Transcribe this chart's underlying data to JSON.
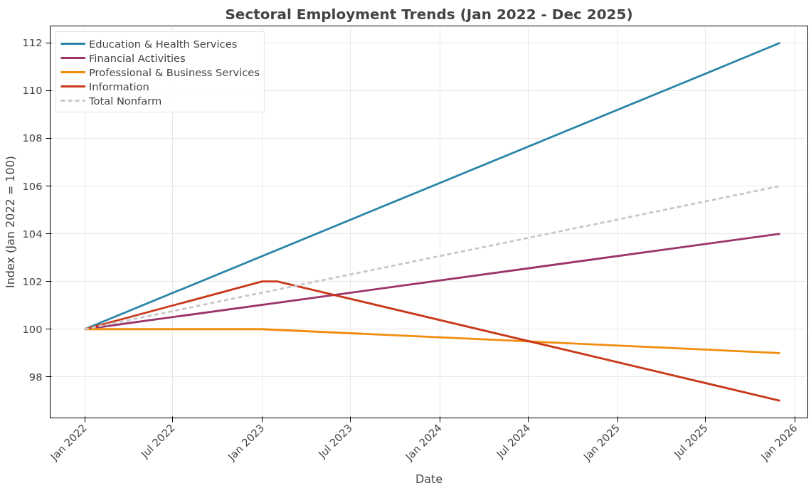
{
  "chart_data": {
    "type": "line",
    "title": "Sectoral Employment Trends (Jan 2022 - Dec 2025)",
    "xlabel": "Date",
    "ylabel": "Index (Jan 2022 = 100)",
    "xlim": [
      "2021-10-22",
      "2026-01-27"
    ],
    "ylim": [
      96.28,
      112.71
    ],
    "xticks": [
      {
        "value": "2022-01",
        "label": "Jan 2022"
      },
      {
        "value": "2022-07",
        "label": "Jul 2022"
      },
      {
        "value": "2023-01",
        "label": "Jan 2023"
      },
      {
        "value": "2023-07",
        "label": "Jul 2023"
      },
      {
        "value": "2024-01",
        "label": "Jan 2024"
      },
      {
        "value": "2024-07",
        "label": "Jul 2024"
      },
      {
        "value": "2025-01",
        "label": "Jan 2025"
      },
      {
        "value": "2025-07",
        "label": "Jul 2025"
      },
      {
        "value": "2026-01",
        "label": "Jan 2026"
      }
    ],
    "yticks": [
      98,
      100,
      102,
      104,
      106,
      108,
      110,
      112
    ],
    "grid": true,
    "legend": "top left",
    "marker": "none",
    "series": [
      {
        "name": "Education & Health Services",
        "color": "#2a86a8",
        "line_style": "solid",
        "x": [
          "2022-01",
          "2025-12"
        ],
        "values": [
          100,
          112
        ]
      },
      {
        "name": "Financial Activities",
        "color": "#9b3468",
        "line_style": "solid",
        "x": [
          "2022-01",
          "2025-12"
        ],
        "values": [
          100,
          104
        ]
      },
      {
        "name": "Professional & Business Services",
        "color": "#f28c0f",
        "line_style": "solid",
        "x": [
          "2022-01",
          "2023-01",
          "2025-12"
        ],
        "values": [
          100,
          100,
          99
        ]
      },
      {
        "name": "Information",
        "color": "#c9381a",
        "line_style": "solid",
        "x": [
          "2022-01",
          "2023-01",
          "2023-02",
          "2025-12"
        ],
        "values": [
          100,
          102,
          102,
          97
        ]
      },
      {
        "name": "Total Nonfarm",
        "color": "#c8c8c8",
        "line_style": "dashed",
        "x": [
          "2022-01",
          "2025-12"
        ],
        "values": [
          100,
          106
        ]
      }
    ]
  }
}
